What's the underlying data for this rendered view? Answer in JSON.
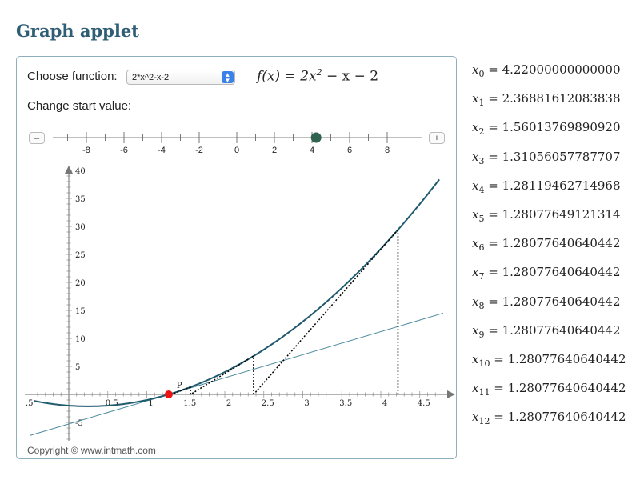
{
  "page": {
    "heading": "Graph applet"
  },
  "controls": {
    "choose_label": "Choose function:",
    "function_selected": "2*x^2-x-2",
    "formula_lhs": "f(x) = 2x",
    "formula_exp": "2",
    "formula_rhs": " − x − 2",
    "start_label": "Change start value:",
    "minus_label": "–",
    "plus_label": "+"
  },
  "slider": {
    "min": -10,
    "max": 10,
    "value": 4.22,
    "tick_labels": [
      "-8",
      "-6",
      "-4",
      "-2",
      "0",
      "2",
      "4",
      "6",
      "8"
    ],
    "tick_values": [
      -8,
      -6,
      -4,
      -2,
      0,
      2,
      4,
      6,
      8
    ]
  },
  "graph": {
    "x_tick_labels": [
      "0.5",
      "1",
      "1.5",
      "2",
      "2.5",
      "3",
      "3.5",
      "4",
      "4.5"
    ],
    "x_tick_values": [
      0.5,
      1,
      1.5,
      2,
      2.5,
      3,
      3.5,
      4,
      4.5
    ],
    "y_tick_labels": [
      "-5",
      "5",
      "10",
      "15",
      "20",
      "25",
      "30",
      "35",
      "40"
    ],
    "y_tick_values": [
      -5,
      5,
      10,
      15,
      20,
      25,
      30,
      35,
      40
    ],
    "left_edge_label": ".5",
    "point_label": "P",
    "root_x": 1.28077640640442,
    "colors": {
      "curve": "#1f5a6e",
      "tangent": "#4a8a9e",
      "point": "#ee1111",
      "newton": "#000000",
      "axis": "#888888"
    }
  },
  "footer": {
    "copyright": "Copyright © www.intmath.com"
  },
  "iterations": [
    {
      "sub": "0",
      "value": "4.22000000000000"
    },
    {
      "sub": "1",
      "value": "2.36881612083838"
    },
    {
      "sub": "2",
      "value": "1.56013769890920"
    },
    {
      "sub": "3",
      "value": "1.31056057787707"
    },
    {
      "sub": "4",
      "value": "1.28119462714968"
    },
    {
      "sub": "5",
      "value": "1.28077649121314"
    },
    {
      "sub": "6",
      "value": "1.28077640640442"
    },
    {
      "sub": "7",
      "value": "1.28077640640442"
    },
    {
      "sub": "8",
      "value": "1.28077640640442"
    },
    {
      "sub": "9",
      "value": "1.28077640640442"
    },
    {
      "sub": "10",
      "value": "1.28077640640442"
    },
    {
      "sub": "11",
      "value": "1.28077640640442"
    },
    {
      "sub": "12",
      "value": "1.28077640640442"
    }
  ]
}
